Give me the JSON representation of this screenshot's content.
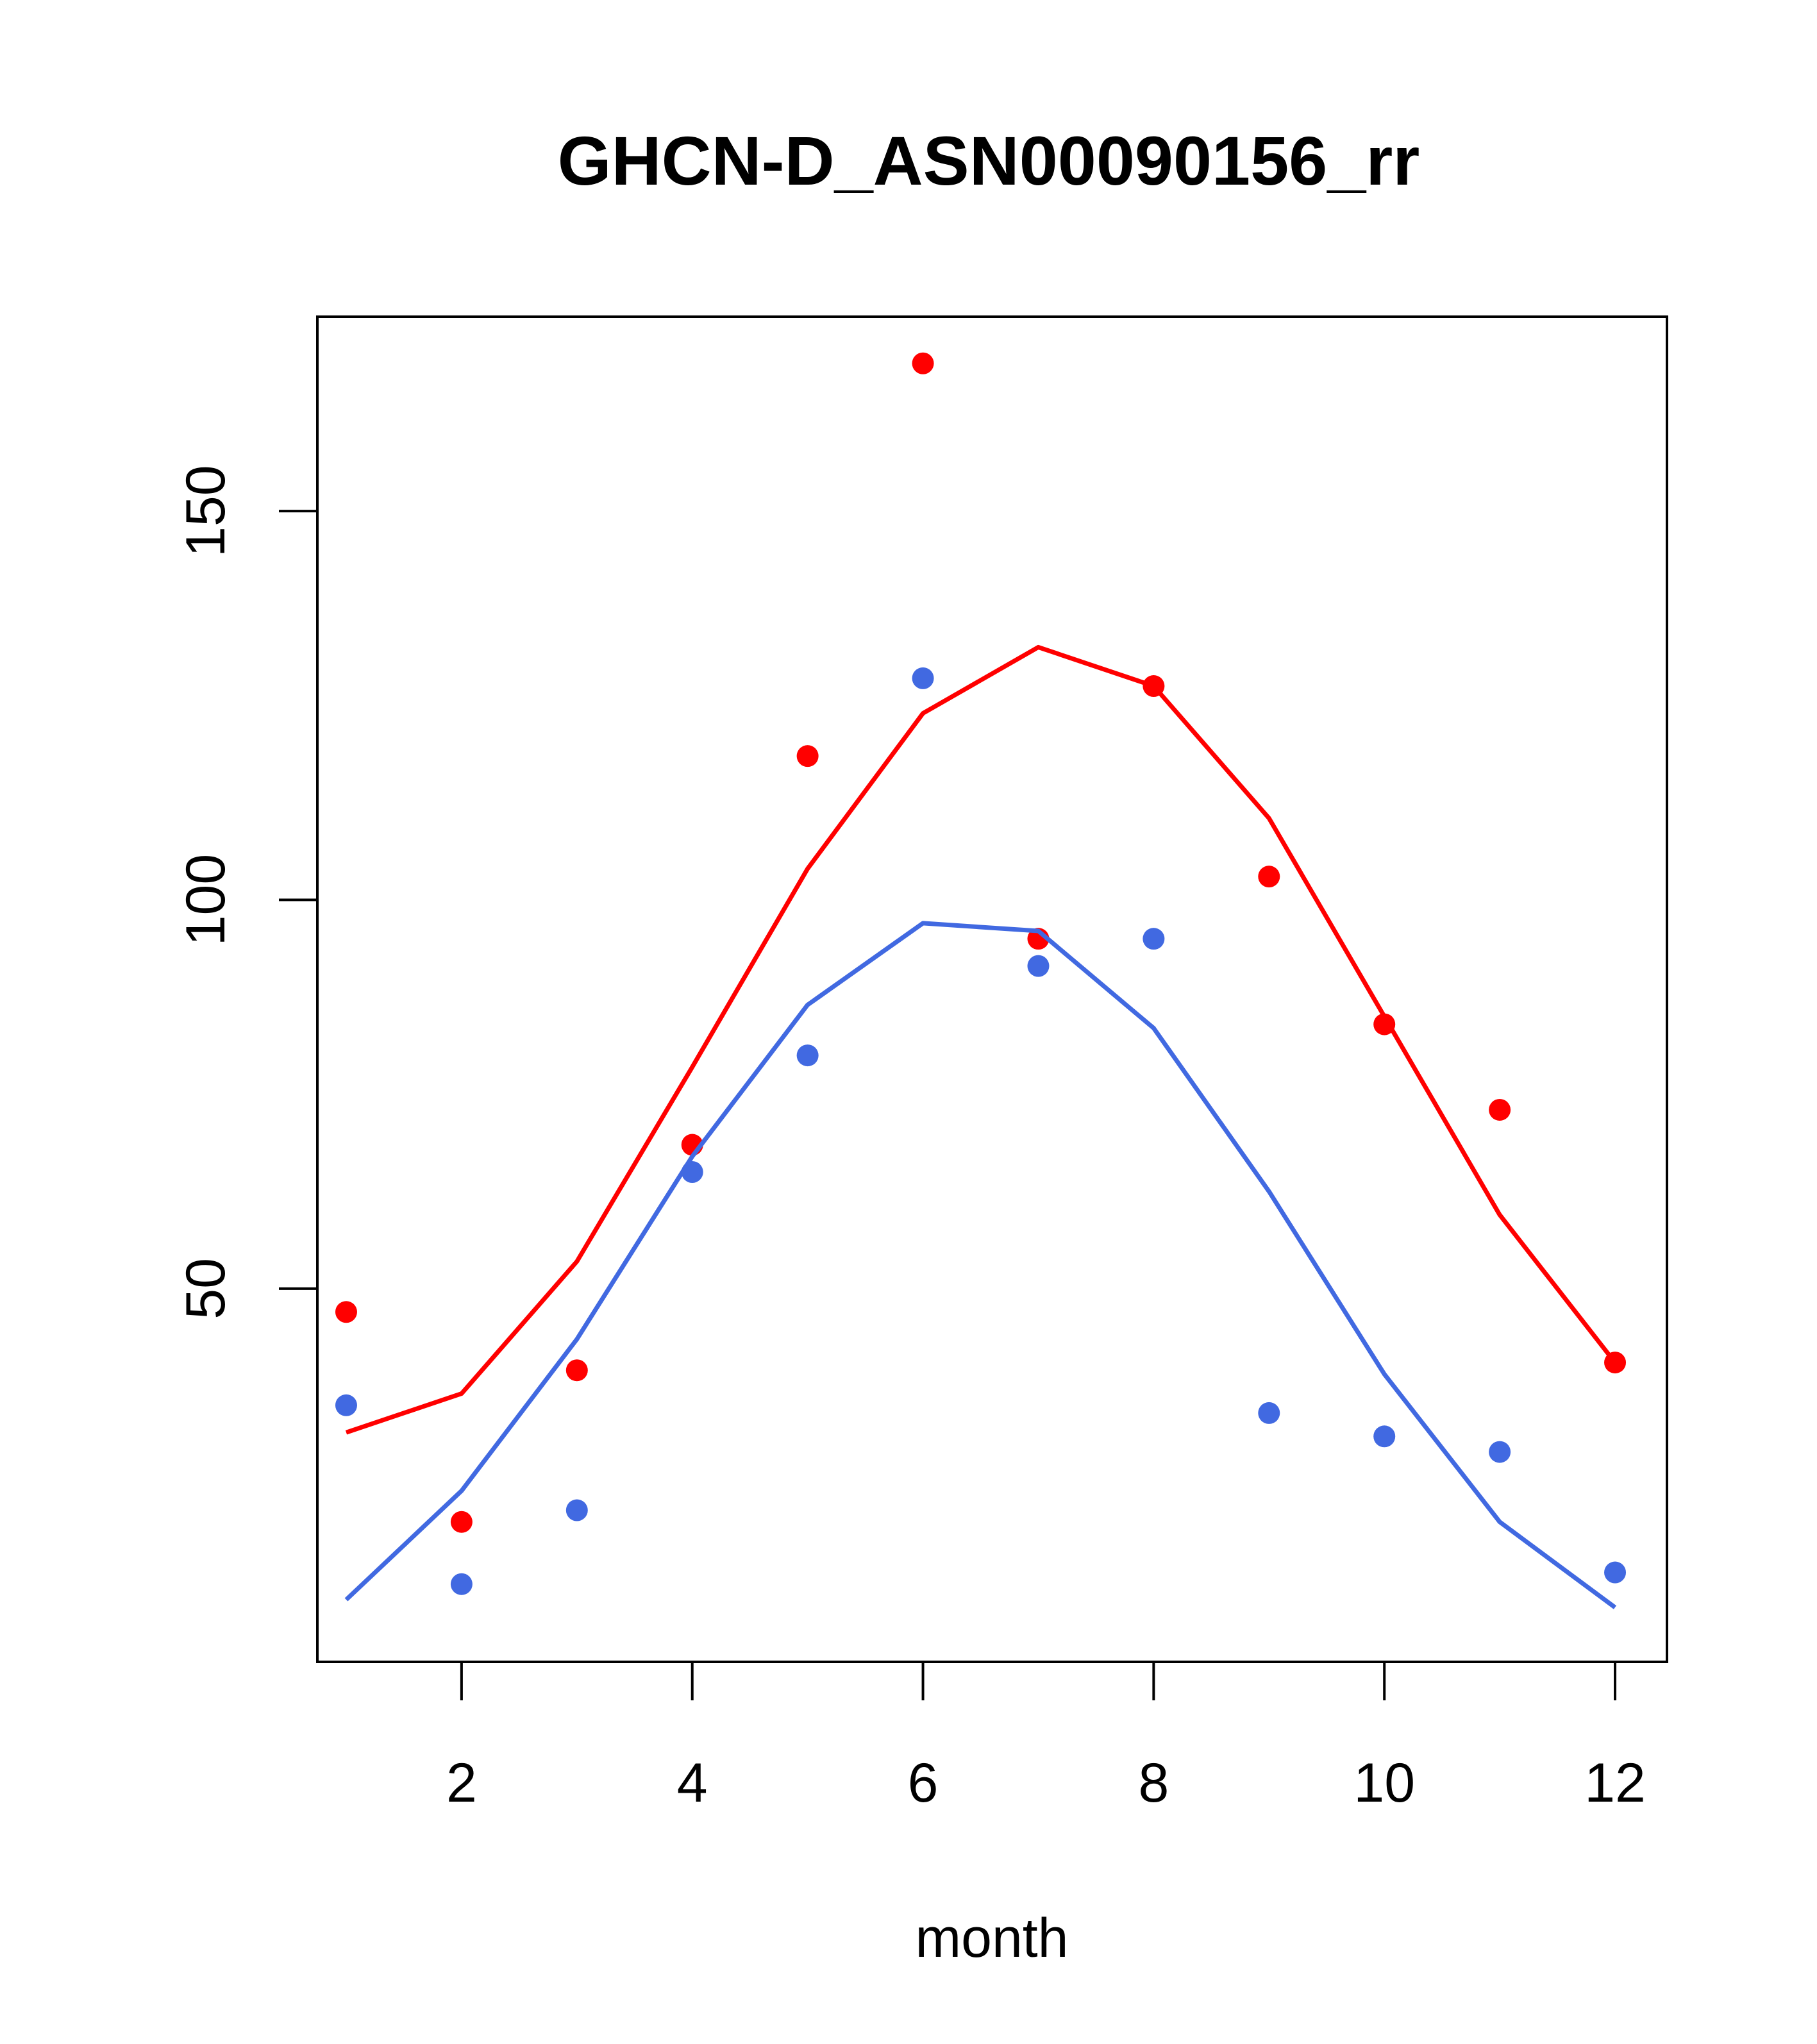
{
  "chart_data": {
    "type": "scatter",
    "title": "GHCN-D_ASN00090156_rr",
    "xlabel": "month",
    "ylabel": "",
    "xlim": [
      0.75,
      12.45
    ],
    "ylim": [
      2,
      175
    ],
    "x_ticks": [
      2,
      4,
      6,
      8,
      10,
      12
    ],
    "y_ticks": [
      50,
      100,
      150
    ],
    "grid": false,
    "legend": "none",
    "x": [
      1,
      2,
      3,
      4,
      5,
      6,
      7,
      8,
      9,
      10,
      11,
      12
    ],
    "series": [
      {
        "color": "#ff0000",
        "points": [
          47,
          20,
          39.5,
          68.5,
          118.5,
          169,
          95,
          127.5,
          103,
          84,
          73,
          40.5
        ],
        "line": [
          31.5,
          36.5,
          53.5,
          78.5,
          104,
          124,
          132.5,
          127.5,
          110.5,
          85,
          59.5,
          40.5
        ]
      },
      {
        "color": "#4169e1",
        "points": [
          35,
          12,
          21.5,
          65,
          80,
          128.5,
          91.5,
          95,
          34,
          31,
          29,
          13.5
        ],
        "line": [
          10,
          24,
          43.5,
          67,
          86.5,
          97,
          96,
          83.5,
          62.5,
          39,
          20,
          9
        ]
      }
    ]
  }
}
